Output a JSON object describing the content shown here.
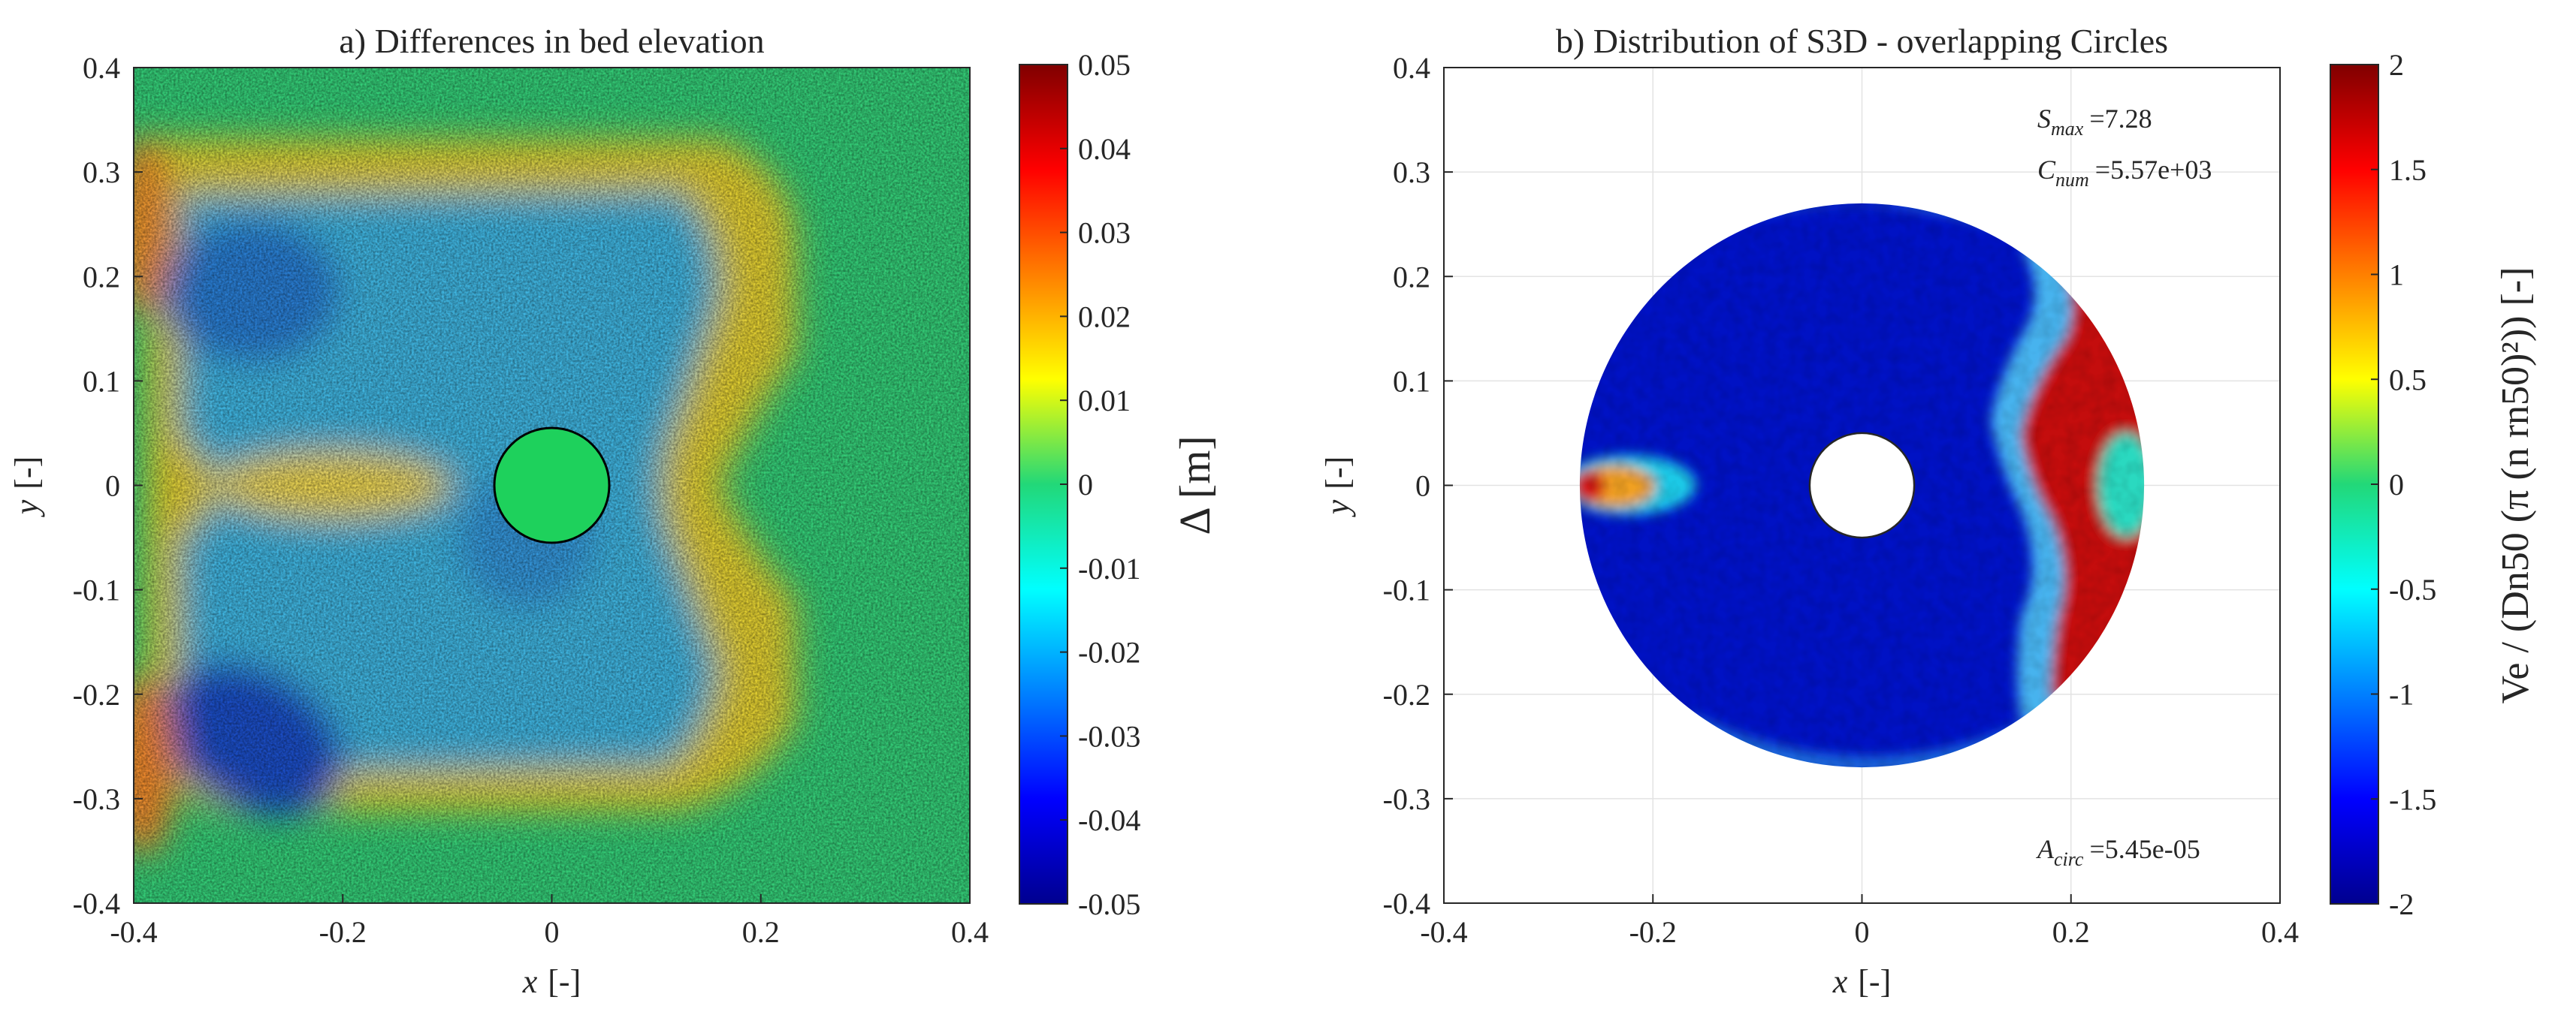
{
  "chart_data": [
    {
      "type": "heatmap",
      "title": "a) Differences in bed elevation",
      "xlabel": "x",
      "xlabel_unit": "[-]",
      "ylabel": "y",
      "ylabel_unit": "[-]",
      "xlim": [
        -0.4,
        0.4
      ],
      "ylim": [
        -0.4,
        0.4
      ],
      "xticks": [
        "-0.4",
        "-0.2",
        "0",
        "0.2",
        "0.4"
      ],
      "yticks": [
        "0.4",
        "0.3",
        "0.2",
        "0.1",
        "0",
        "-0.1",
        "-0.2",
        "-0.3",
        "-0.4"
      ],
      "colorbar": {
        "label": "Δ [m]",
        "range": [
          -0.05,
          0.05
        ],
        "ticks": [
          "0.05",
          "0.04",
          "0.03",
          "0.02",
          "0.01",
          "0",
          "-0.01",
          "-0.02",
          "-0.03",
          "-0.04",
          "-0.05"
        ]
      },
      "pile": {
        "center": [
          0,
          0
        ],
        "radius": 0.055,
        "value": 0
      },
      "regions": [
        {
          "name": "scour-upper-left",
          "center": [
            -0.27,
            0.19
          ],
          "value": -0.03
        },
        {
          "name": "scour-lower-left",
          "center": [
            -0.28,
            -0.22
          ],
          "value": -0.037
        },
        {
          "name": "scour-basin",
          "center": [
            -0.05,
            0.0
          ],
          "value": -0.012
        },
        {
          "name": "deposition-ring",
          "center": [
            -0.05,
            0.0
          ],
          "value": 0.015
        },
        {
          "name": "deposition-left-edge",
          "center": [
            -0.39,
            0.0
          ],
          "value": 0.028
        }
      ]
    },
    {
      "type": "heatmap",
      "title": "b) Distribution of S3D - overlapping Circles",
      "xlabel": "x",
      "xlabel_unit": "[-]",
      "ylabel": "y",
      "ylabel_unit": "[-]",
      "xlim": [
        -0.4,
        0.4
      ],
      "ylim": [
        -0.4,
        0.4
      ],
      "xticks": [
        "-0.4",
        "-0.2",
        "0",
        "0.2",
        "0.4"
      ],
      "yticks": [
        "0.4",
        "0.3",
        "0.2",
        "0.1",
        "0",
        "-0.1",
        "-0.2",
        "-0.3",
        "-0.4"
      ],
      "colorbar": {
        "label": "Ve / (Dn50 (π (n rn50)²)) [-]",
        "range": [
          -2,
          2
        ],
        "ticks": [
          "2",
          "1.5",
          "1",
          "0.5",
          "0",
          "-0.5",
          "-1",
          "-1.5",
          "-2"
        ]
      },
      "domain_outer_radius": 0.27,
      "domain_inner_radius": 0.05,
      "annotations": {
        "smax_label": "S",
        "smax_sub": "max",
        "smax_value": "=7.28",
        "cnum_label": "C",
        "cnum_sub": "num",
        "cnum_value": "=5.57e+03",
        "acirc_label": "A",
        "acirc_sub": "circ",
        "acirc_value": "=5.45e-05"
      },
      "regions": [
        {
          "name": "background",
          "value": -2
        },
        {
          "name": "right-band",
          "center": [
            0.19,
            0.0
          ],
          "value": 2
        },
        {
          "name": "left-wedge",
          "center": [
            -0.21,
            0.0
          ],
          "value": 0.5
        }
      ]
    }
  ]
}
